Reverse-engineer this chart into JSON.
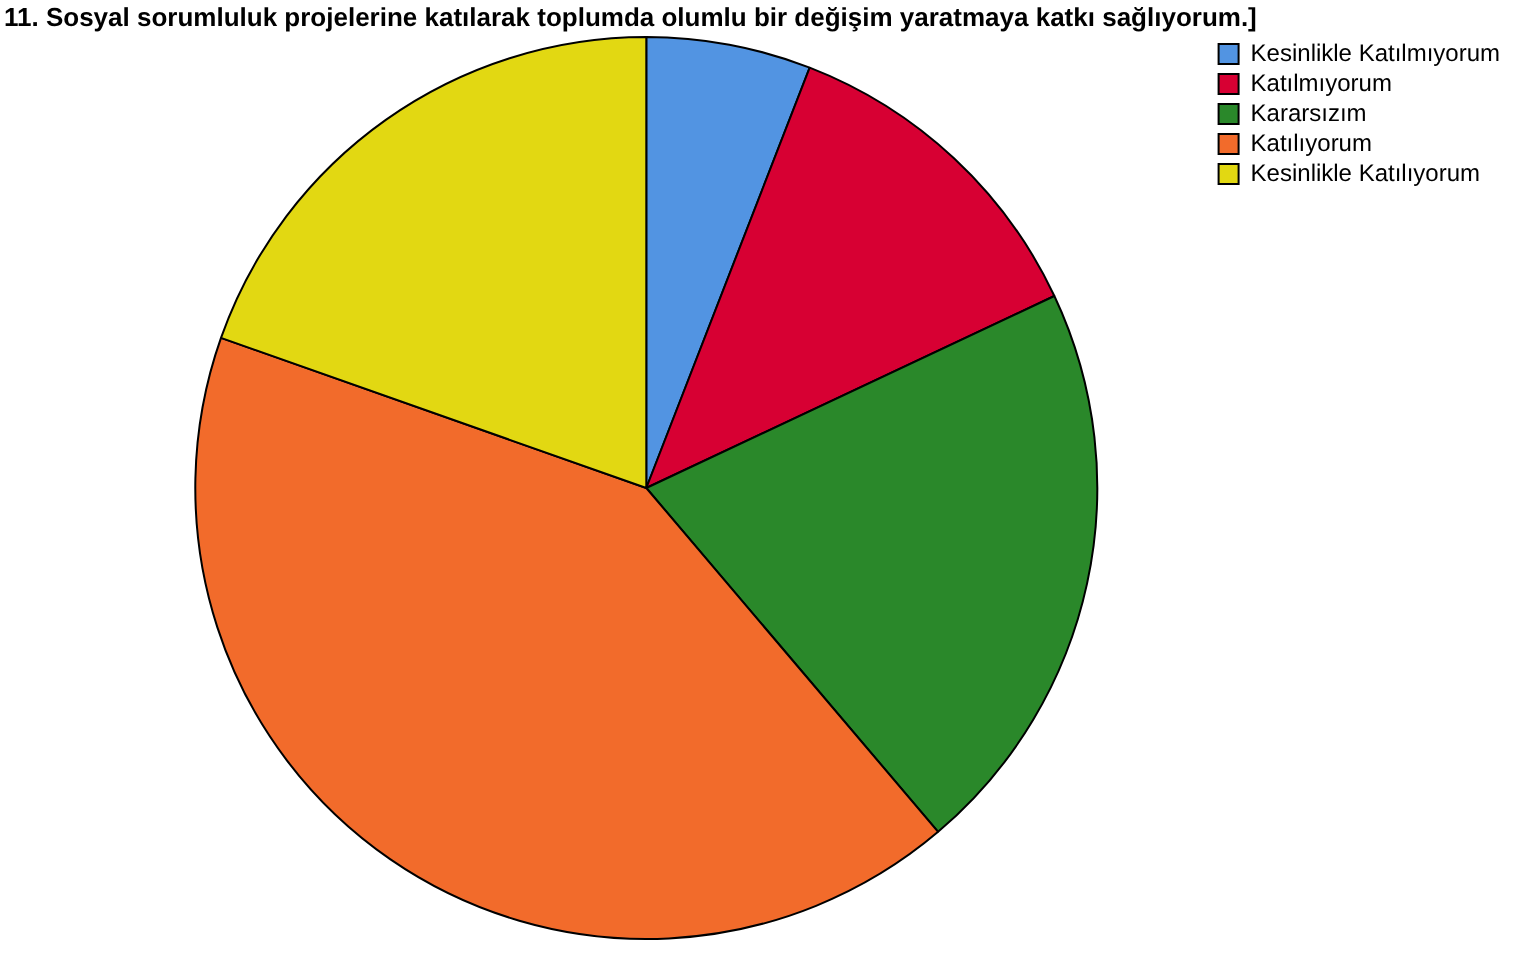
{
  "chart_data": {
    "type": "pie",
    "title": "11. Sosyal sorumluluk projelerine katılarak toplumda olumlu bir değişim yaratmaya katkı sağlıyorum.]",
    "categories": [
      "Kesinlikle Katılmıyorum",
      "Katılmıyorum",
      "Kararsızım",
      "Katılıyorum",
      "Kesinlikle Katılıyorum"
    ],
    "values": [
      5.9,
      12.1,
      20.8,
      41.6,
      19.6
    ],
    "colors": [
      "#5294e2",
      "#d70033",
      "#2a882a",
      "#f26b2b",
      "#e2d812"
    ],
    "legend": "top right"
  }
}
